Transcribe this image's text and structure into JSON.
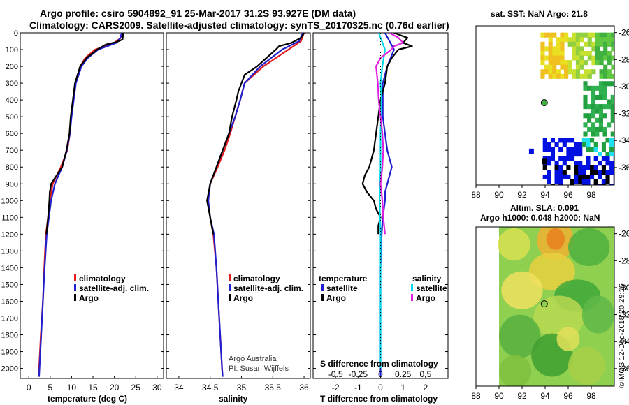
{
  "title_line1": "Argo profile: csiro 5904892_91 25-Mar-2017 31.2S 93.927E (DM data)",
  "title_line2": "Climatology: CARS2009. Satellite-adjusted climatology: synTS_20170325.nc (0.76d earlier)",
  "chart_data": [
    {
      "id": "temperature",
      "type": "line",
      "xlabel": "temperature (deg C)",
      "ylabel": "depth",
      "xlim": [
        -2,
        31.5
      ],
      "ylim": [
        0,
        2060
      ],
      "xticks": [
        "0",
        "5",
        "10",
        "15",
        "20",
        "25",
        "30"
      ],
      "xtick_values": [
        0,
        5,
        10,
        15,
        20,
        25,
        30
      ],
      "yticks": [
        "0",
        "100",
        "200",
        "300",
        "400",
        "500",
        "600",
        "700",
        "800",
        "900",
        "1000",
        "1100",
        "1200",
        "1300",
        "1400",
        "1500",
        "1600",
        "1700",
        "1800",
        "1900",
        "2000"
      ],
      "ytick_values": [
        0,
        100,
        200,
        300,
        400,
        500,
        600,
        700,
        800,
        900,
        1000,
        1100,
        1200,
        1300,
        1400,
        1500,
        1600,
        1700,
        1800,
        1900,
        2000
      ],
      "legend": [
        "climatology",
        "satellite-adj. clim.",
        "Argo"
      ],
      "series": [
        {
          "name": "climatology",
          "color": "#e41a1c",
          "depth": [
            0,
            30,
            60,
            100,
            150,
            200,
            300,
            400,
            500,
            600,
            700,
            800,
            900,
            1000,
            1100,
            1200,
            1400,
            1600,
            1800,
            2000,
            2050
          ],
          "values": [
            21.8,
            21.5,
            20.0,
            15.5,
            13.2,
            12.0,
            10.9,
            10.4,
            9.9,
            9.6,
            9.0,
            7.5,
            5.6,
            4.9,
            4.5,
            4.0,
            3.6,
            3.3,
            2.8,
            2.4,
            2.3
          ]
        },
        {
          "name": "satellite-adj. clim.",
          "color": "#2020d0",
          "depth": [
            0,
            30,
            60,
            100,
            150,
            200,
            300,
            400,
            500,
            600,
            700,
            800,
            900,
            1000,
            1100,
            1200,
            1400,
            1600,
            1800,
            2000,
            2050
          ],
          "values": [
            21.7,
            21.4,
            20.5,
            16.2,
            13.8,
            12.3,
            11.0,
            10.5,
            10.0,
            9.6,
            8.9,
            7.8,
            6.1,
            5.2,
            4.7,
            4.2,
            3.7,
            3.3,
            2.9,
            2.5,
            2.4
          ]
        },
        {
          "name": "Argo",
          "color": "#000000",
          "depth": [
            0,
            20,
            40,
            55,
            70,
            100,
            150,
            200,
            300,
            400,
            500,
            600,
            700,
            800,
            850,
            900,
            950,
            1000,
            1100,
            1200
          ],
          "values": [
            22.0,
            22.0,
            21.9,
            20.5,
            18.0,
            16.0,
            13.5,
            12.0,
            10.8,
            10.3,
            9.8,
            9.5,
            8.8,
            7.8,
            6.5,
            5.2,
            4.9,
            4.8,
            4.5,
            4.1
          ]
        }
      ]
    },
    {
      "id": "salinity",
      "type": "line",
      "xlabel": "salinity",
      "ylabel": "depth",
      "xlim": [
        33.8,
        36.1
      ],
      "ylim": [
        0,
        2060
      ],
      "xticks": [
        "34",
        "34.5",
        "35",
        "35.5",
        "36"
      ],
      "xtick_values": [
        34,
        34.5,
        35,
        35.5,
        36
      ],
      "legend": [
        "climatology",
        "satellite-adj. clim.",
        "Argo"
      ],
      "series": [
        {
          "name": "climatology",
          "color": "#e41a1c",
          "depth": [
            0,
            50,
            100,
            200,
            300,
            400,
            500,
            600,
            700,
            800,
            900,
            1000,
            1100,
            1200,
            1400,
            1600,
            1800,
            2000,
            2050
          ],
          "values": [
            36.0,
            35.95,
            35.75,
            35.35,
            35.05,
            34.98,
            34.9,
            34.82,
            34.73,
            34.62,
            34.5,
            34.47,
            34.5,
            34.55,
            34.6,
            34.63,
            34.66,
            34.69,
            34.7
          ]
        },
        {
          "name": "satellite-adj. clim.",
          "color": "#2020d0",
          "depth": [
            0,
            50,
            100,
            200,
            300,
            400,
            500,
            600,
            700,
            800,
            900,
            1000,
            1100,
            1200,
            1400,
            1600,
            1800,
            2000,
            2050
          ],
          "values": [
            35.98,
            35.92,
            35.65,
            35.3,
            35.05,
            34.98,
            34.9,
            34.8,
            34.7,
            34.6,
            34.5,
            34.47,
            34.5,
            34.56,
            34.6,
            34.63,
            34.66,
            34.69,
            34.7
          ]
        },
        {
          "name": "Argo",
          "color": "#000000",
          "depth": [
            0,
            30,
            60,
            80,
            100,
            150,
            200,
            250,
            300,
            350,
            400,
            500,
            600,
            700,
            800,
            900,
            1000,
            1100,
            1200
          ],
          "values": [
            36.0,
            35.95,
            35.8,
            35.6,
            35.55,
            35.4,
            35.25,
            35.05,
            35.0,
            34.95,
            34.92,
            34.85,
            34.8,
            34.7,
            34.6,
            34.5,
            34.45,
            34.5,
            34.55
          ]
        }
      ],
      "annotations": [
        "Argo Australia",
        "PI: Susan Wijffels"
      ]
    },
    {
      "id": "differences",
      "type": "line",
      "xlabel": "T difference from climatology",
      "xlabel_top": "S difference from climatology",
      "ylabel": "depth",
      "xlim": [
        -3,
        3
      ],
      "ylim": [
        0,
        2060
      ],
      "xticks": [
        "-2",
        "-1",
        "0",
        "1",
        "2"
      ],
      "xtick_values": [
        -2,
        -1,
        0,
        1,
        2
      ],
      "s_xticks": [
        "-0.5",
        "-0.25",
        "0",
        "0.25",
        "0.5"
      ],
      "s_xtick_values": [
        -0.5,
        -0.25,
        0,
        0.25,
        0.5
      ],
      "legend_temperature_title": "temperature",
      "legend_salinity_title": "salinity",
      "legend_temperature": [
        "satellite",
        "Argo"
      ],
      "legend_salinity": [
        "satellite",
        "Argo"
      ],
      "series": [
        {
          "name": "T satellite",
          "color": "#2020d0",
          "depth": [
            0,
            100,
            200,
            300,
            400,
            500,
            600,
            700,
            800,
            850,
            900,
            950,
            1000,
            1100,
            1200,
            1400,
            1600,
            1800,
            2000,
            2050
          ],
          "values": [
            0.2,
            0.6,
            0.3,
            0.1,
            0.1,
            0.1,
            0.2,
            0.3,
            0.5,
            0.4,
            0.3,
            0.2,
            0.2,
            0.1,
            0.05,
            0.0,
            0.0,
            0.0,
            0.0,
            0.0
          ]
        },
        {
          "name": "T Argo",
          "color": "#000000",
          "depth": [
            0,
            30,
            60,
            80,
            100,
            150,
            200,
            300,
            400,
            500,
            600,
            700,
            800,
            850,
            900,
            950,
            1000,
            1050,
            1100,
            1150,
            1200
          ],
          "values": [
            0.6,
            1.2,
            1.0,
            1.4,
            0.8,
            0.5,
            0.3,
            0.2,
            0.0,
            -0.1,
            -0.2,
            -0.3,
            -0.5,
            -0.7,
            -0.8,
            -0.6,
            -0.3,
            -0.2,
            0.0,
            -0.1,
            -0.1
          ]
        },
        {
          "name": "S satellite",
          "color": "#00d8e8",
          "depth": [
            0,
            100,
            200,
            300,
            400,
            600,
            800,
            1000,
            1200,
            1400,
            1600,
            1800,
            2000
          ],
          "values": [
            -0.02,
            0.05,
            0.02,
            0.0,
            0.01,
            0.0,
            0.0,
            -0.01,
            0.0,
            0.0,
            0.0,
            0.0,
            0.0
          ]
        },
        {
          "name": "S Argo",
          "color": "#e020e0",
          "depth": [
            0,
            30,
            60,
            80,
            100,
            150,
            200,
            300,
            400,
            500,
            600,
            700,
            800,
            900,
            1000,
            1100,
            1200
          ],
          "values": [
            0.1,
            0.2,
            0.25,
            0.15,
            0.12,
            0.0,
            -0.05,
            -0.03,
            -0.02,
            0.0,
            0.02,
            0.03,
            0.02,
            0.0,
            0.02,
            0.03,
            0.05
          ]
        }
      ]
    },
    {
      "id": "sst_map",
      "type": "heatmap",
      "title": "sat. SST: NaN Argo: 21.8",
      "xticks": [
        "88",
        "90",
        "92",
        "94",
        "96",
        "98"
      ],
      "xtick_values": [
        88,
        90,
        92,
        94,
        96,
        98
      ],
      "yticks": [
        "-26",
        "-28",
        "-30",
        "-32",
        "-34",
        "-36"
      ],
      "ytick_values": [
        -26,
        -28,
        -30,
        -32,
        -34,
        -36
      ],
      "xlim": [
        88,
        100
      ],
      "ylim": [
        -37.3,
        -25.5
      ],
      "argo_position": [
        93.927,
        -31.2
      ]
    },
    {
      "id": "sla_map",
      "type": "heatmap",
      "title_line1": "Altim. SLA: 0.091",
      "title_line2": "Argo h1000: 0.048 h2000: NaN",
      "xticks": [
        "88",
        "90",
        "92",
        "94",
        "96",
        "98"
      ],
      "xtick_values": [
        88,
        90,
        92,
        94,
        96,
        98
      ],
      "yticks": [
        "-26",
        "-28",
        "-30",
        "-32",
        "-34",
        "-36"
      ],
      "ytick_values": [
        -26,
        -28,
        -30,
        -32,
        -34,
        -36
      ],
      "xlim": [
        88,
        100
      ],
      "ylim": [
        -37.3,
        -25.5
      ],
      "argo_position": [
        93.927,
        -31.2
      ]
    }
  ],
  "footer_credit": "©IMOS 12-Dec-2018 20:29:16"
}
